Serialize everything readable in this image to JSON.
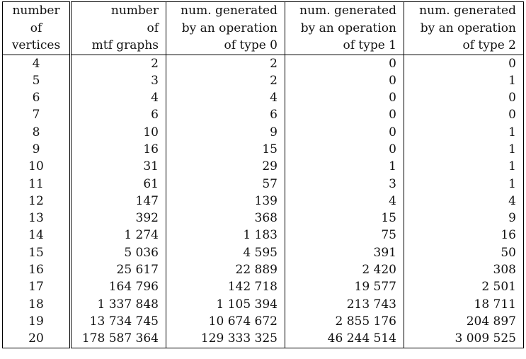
{
  "headers": [
    [
      "number",
      "of",
      "vertices"
    ],
    [
      "number",
      "of",
      "mtf graphs"
    ],
    [
      "num. generated",
      "by an operation",
      "of type 0"
    ],
    [
      "num. generated",
      "by an operation",
      "of type 1"
    ],
    [
      "num. generated",
      "by an operation",
      "of type 2"
    ]
  ],
  "rows": [
    [
      "4",
      "2",
      "2",
      "0",
      "0"
    ],
    [
      "5",
      "3",
      "2",
      "0",
      "1"
    ],
    [
      "6",
      "4",
      "4",
      "0",
      "0"
    ],
    [
      "7",
      "6",
      "6",
      "0",
      "0"
    ],
    [
      "8",
      "10",
      "9",
      "0",
      "1"
    ],
    [
      "9",
      "16",
      "15",
      "0",
      "1"
    ],
    [
      "10",
      "31",
      "29",
      "1",
      "1"
    ],
    [
      "11",
      "61",
      "57",
      "3",
      "1"
    ],
    [
      "12",
      "147",
      "139",
      "4",
      "4"
    ],
    [
      "13",
      "392",
      "368",
      "15",
      "9"
    ],
    [
      "14",
      "1 274",
      "1 183",
      "75",
      "16"
    ],
    [
      "15",
      "5 036",
      "4 595",
      "391",
      "50"
    ],
    [
      "16",
      "25 617",
      "22 889",
      "2 420",
      "308"
    ],
    [
      "17",
      "164 796",
      "142 718",
      "19 577",
      "2 501"
    ],
    [
      "18",
      "1 337 848",
      "1 105 394",
      "213 743",
      "18 711"
    ],
    [
      "19",
      "13 734 745",
      "10 674 672",
      "2 855 176",
      "204 897"
    ],
    [
      "20",
      "178 587 364",
      "129 333 325",
      "46 244 514",
      "3 009 525"
    ]
  ]
}
